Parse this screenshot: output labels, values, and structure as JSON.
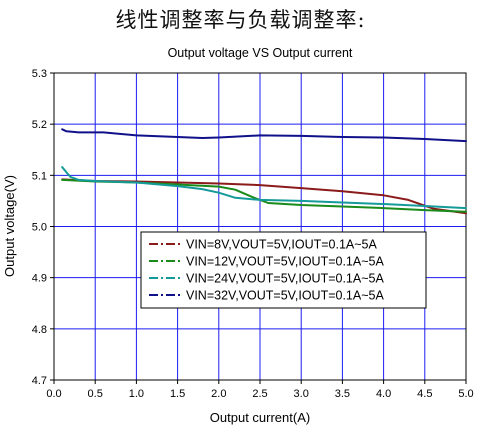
{
  "heading": "线性调整率与负载调整率:",
  "chart_data": {
    "type": "line",
    "title": "Output voltage VS Output current",
    "xlabel": "Output current(A)",
    "ylabel": "Output voltage(V)",
    "xlim": [
      0.0,
      5.0
    ],
    "ylim": [
      4.7,
      5.3
    ],
    "xticks": [
      "0.0",
      "0.5",
      "1.0",
      "1.5",
      "2.0",
      "2.5",
      "3.0",
      "3.5",
      "4.0",
      "4.5",
      "5.0"
    ],
    "yticks": [
      "4.7",
      "4.8",
      "4.9",
      "5.0",
      "5.1",
      "5.2",
      "5.3"
    ],
    "grid": true,
    "grid_color": "#1c1cf0",
    "legend_position": "center-bottom",
    "series": [
      {
        "name": "VIN=8V,VOUT=5V,IOUT=0.1A~5A",
        "color": "#8b1a1a",
        "x": [
          0.1,
          0.5,
          1.0,
          1.5,
          2.0,
          2.5,
          3.0,
          3.5,
          4.0,
          4.3,
          4.6,
          5.0
        ],
        "y": [
          5.092,
          5.089,
          5.088,
          5.086,
          5.084,
          5.081,
          5.075,
          5.069,
          5.061,
          5.052,
          5.035,
          5.026
        ]
      },
      {
        "name": "VIN=12V,VOUT=5V,IOUT=0.1A~5A",
        "color": "#1a8a1a",
        "x": [
          0.1,
          0.5,
          1.0,
          1.5,
          2.0,
          2.2,
          2.4,
          2.6,
          3.0,
          3.5,
          4.0,
          4.5,
          5.0
        ],
        "y": [
          5.091,
          5.088,
          5.086,
          5.082,
          5.078,
          5.072,
          5.058,
          5.046,
          5.042,
          5.039,
          5.036,
          5.032,
          5.029
        ]
      },
      {
        "name": "VIN=24V,VOUT=5V,IOUT=0.1A~5A",
        "color": "#159a9a",
        "x": [
          0.1,
          0.15,
          0.2,
          0.3,
          0.5,
          1.0,
          1.5,
          1.8,
          2.0,
          2.2,
          2.5,
          3.0,
          3.5,
          4.0,
          4.5,
          5.0
        ],
        "y": [
          5.116,
          5.106,
          5.097,
          5.091,
          5.089,
          5.086,
          5.079,
          5.073,
          5.066,
          5.056,
          5.052,
          5.05,
          5.047,
          5.044,
          5.04,
          5.036
        ]
      },
      {
        "name": "VIN=32V,VOUT=5V,IOUT=0.1A~5A",
        "color": "#10108a",
        "x": [
          0.1,
          0.15,
          0.3,
          0.6,
          1.0,
          1.5,
          1.8,
          2.0,
          2.5,
          3.0,
          3.5,
          4.0,
          4.5,
          5.0
        ],
        "y": [
          5.19,
          5.186,
          5.184,
          5.184,
          5.178,
          5.175,
          5.173,
          5.174,
          5.178,
          5.177,
          5.175,
          5.174,
          5.171,
          5.167
        ]
      }
    ]
  }
}
